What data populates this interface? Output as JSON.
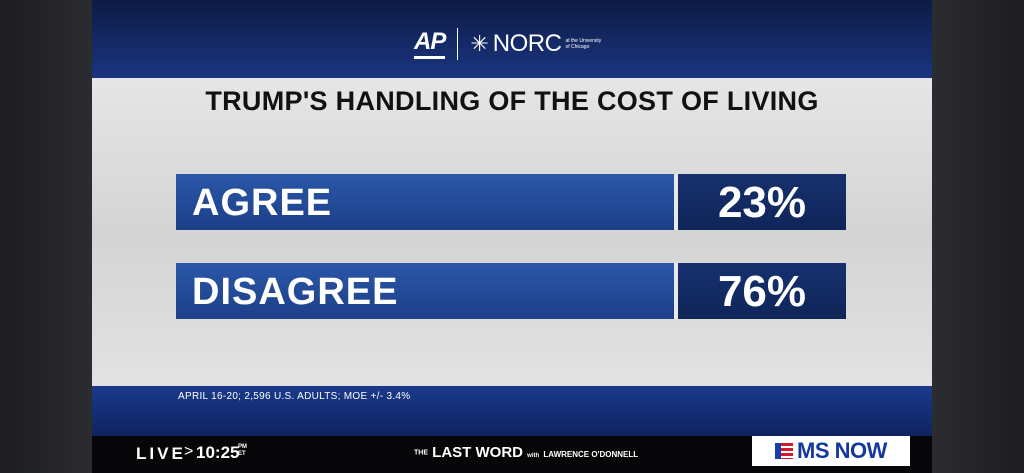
{
  "header": {
    "logo_ap": "AP",
    "logo_norc": "NORC",
    "logo_uchicago": "at the University of Chicago"
  },
  "poll": {
    "title": "TRUMP'S HANDLING OF THE COST OF LIVING",
    "rows": [
      {
        "label": "AGREE",
        "value": "23%"
      },
      {
        "label": "DISAGREE",
        "value": "76%"
      }
    ],
    "source": "APRIL 16-20; 2,596 U.S. ADULTS; MOE  +/- 3.4%"
  },
  "ticker": {
    "live": "LIVE",
    "chevron": ">",
    "time": "10:25",
    "ampm": "PM",
    "tz": "ET",
    "show_the": "THE",
    "show_name": "LAST WORD",
    "show_with": "with",
    "show_host": "LAWRENCE O'DONNELL",
    "network": "MS NOW"
  }
}
